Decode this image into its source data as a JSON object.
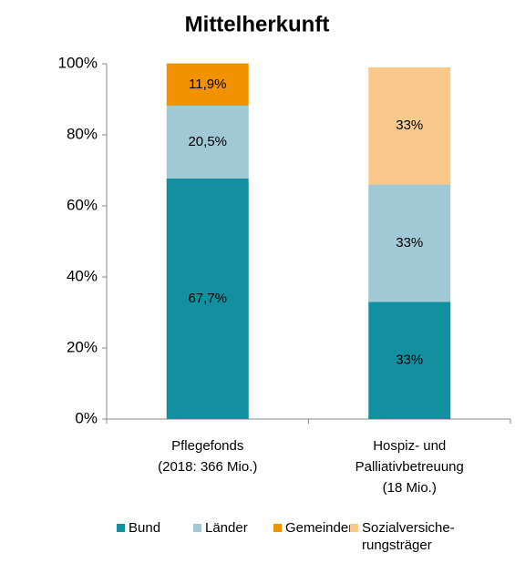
{
  "chart_data": {
    "type": "stacked_bar",
    "title": "Mittelherkunft",
    "categories": [
      [
        "Pflegefonds",
        "(2018: 366 Mio.)"
      ],
      [
        "Hospiz- und",
        "Palliativbetreuung",
        "(18 Mio.)"
      ]
    ],
    "series": [
      {
        "name": "Bund",
        "color": "#12909f",
        "values": [
          67.7,
          33
        ],
        "value_labels": [
          "67,7%",
          "33%"
        ]
      },
      {
        "name": "Länder",
        "color": "#a0c8d5",
        "values": [
          20.5,
          33
        ],
        "value_labels": [
          "20,5%",
          "33%"
        ]
      },
      {
        "name": "Gemeinden",
        "color": "#f39200",
        "values": [
          11.9,
          null
        ],
        "value_labels": [
          "11,9%",
          null
        ]
      },
      {
        "name": "Sozialversiche-rungsträger",
        "color": "#f9c98b",
        "values": [
          null,
          33
        ],
        "value_labels": [
          null,
          "33%"
        ]
      }
    ],
    "ylim": [
      0,
      100
    ],
    "yticks": [
      {
        "value": 0,
        "label": "0%"
      },
      {
        "value": 20,
        "label": "20%"
      },
      {
        "value": 40,
        "label": "40%"
      },
      {
        "value": 60,
        "label": "60%"
      },
      {
        "value": 80,
        "label": "80%"
      },
      {
        "value": 100,
        "label": "100%"
      }
    ],
    "grid": false
  }
}
